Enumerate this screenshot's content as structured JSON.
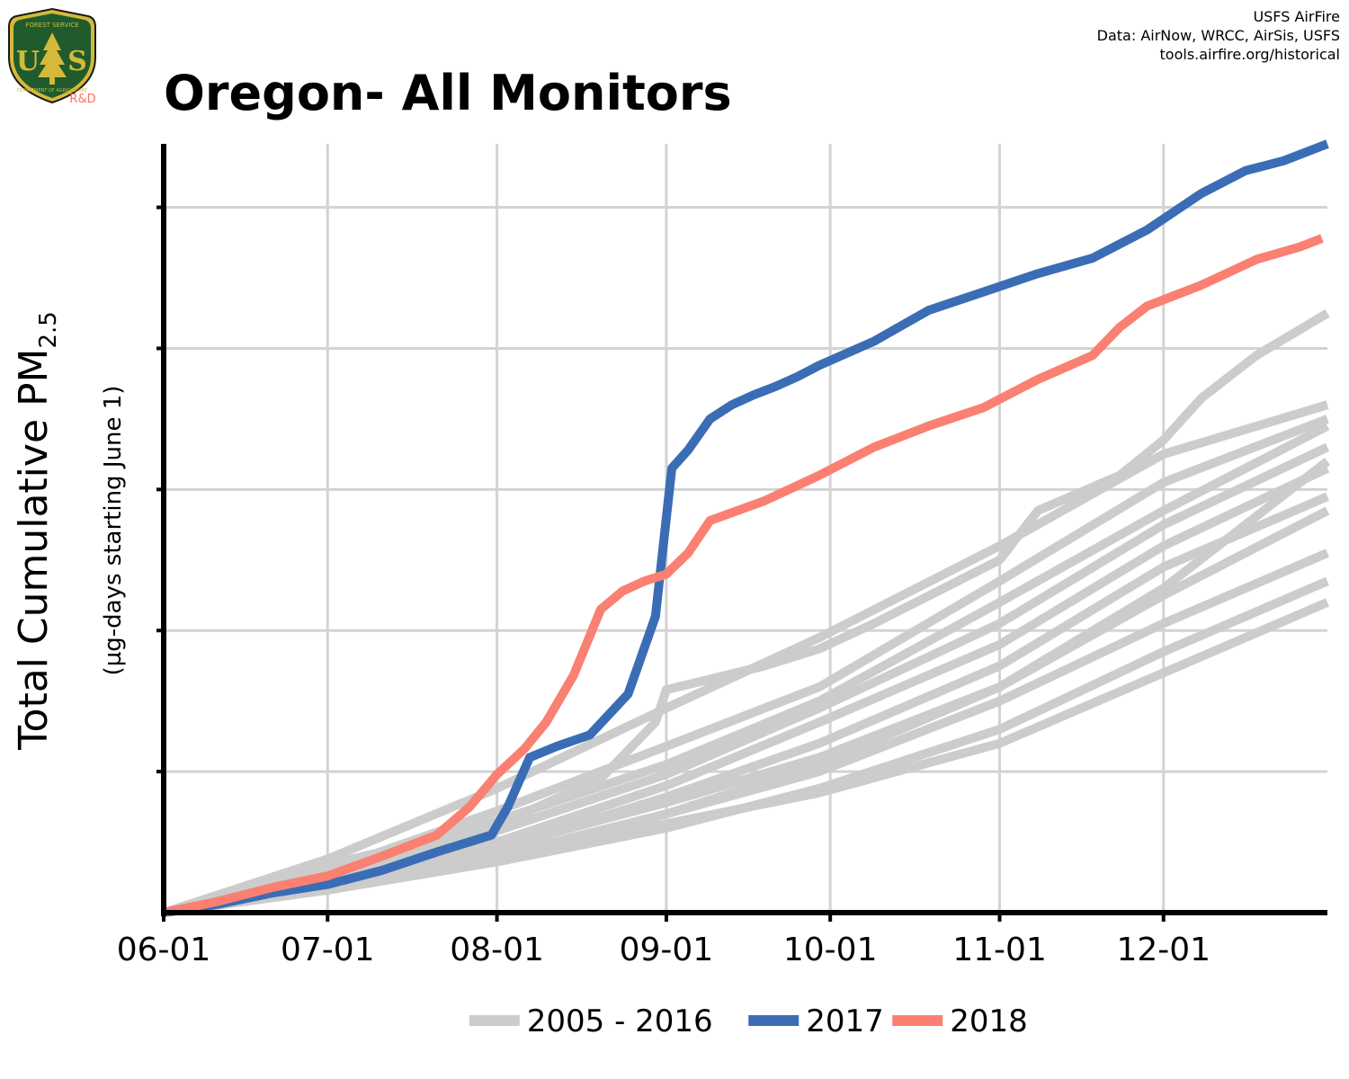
{
  "header": {
    "source_lines": [
      "USFS AirFire",
      "Data: AirNow, WRCC, AirSis, USFS",
      "tools.airfire.org/historical"
    ],
    "logo": {
      "top_text": "FOREST SERVICE",
      "letters": "U S",
      "bottom_text": "DEPARTMENT OF AGRICULTURE",
      "tag": "R&D",
      "colors": {
        "shield": "#1f5b2c",
        "trim": "#d4b93a",
        "tag": "#ff6f61"
      }
    }
  },
  "chart_data": {
    "type": "line",
    "title": "Oregon- All Monitors",
    "xlabel": "",
    "ylabel": "Total Cumulative PM",
    "ylabel_subscript": "2.5",
    "ylabel_sub": "(µg-days starting June 1)",
    "x_ticks": [
      "06-01",
      "07-01",
      "08-01",
      "09-01",
      "10-01",
      "11-01",
      "12-01"
    ],
    "x_tick_days": [
      0,
      30,
      61,
      92,
      122,
      153,
      183
    ],
    "xlim": [
      0,
      213
    ],
    "ylim": [
      0,
      5.45
    ],
    "y_ticks": [
      1,
      2,
      3,
      4,
      5
    ],
    "y_tick_labels_visible": false,
    "grid": true,
    "legend_position": "bottom",
    "legend": [
      {
        "label": "2005 - 2016",
        "color": "#cccccc"
      },
      {
        "label": "2017",
        "color": "#3a6db5"
      },
      {
        "label": "2018",
        "color": "#fa8072"
      }
    ],
    "series": [
      {
        "name": "2017",
        "color": "#3a6db5",
        "x": [
          0,
          10,
          20,
          30,
          40,
          50,
          60,
          63,
          67,
          72,
          78,
          85,
          90,
          93,
          96,
          100,
          104,
          108,
          112,
          116,
          120,
          130,
          140,
          150,
          160,
          170,
          180,
          190,
          198,
          205,
          213
        ],
        "y": [
          0,
          0.06,
          0.14,
          0.2,
          0.3,
          0.43,
          0.55,
          0.75,
          1.1,
          1.18,
          1.26,
          1.55,
          2.1,
          3.15,
          3.28,
          3.5,
          3.6,
          3.67,
          3.73,
          3.8,
          3.88,
          4.05,
          4.27,
          4.4,
          4.53,
          4.64,
          4.84,
          5.1,
          5.26,
          5.33,
          5.45
        ]
      },
      {
        "name": "2018",
        "color": "#fa8072",
        "x": [
          0,
          10,
          20,
          30,
          40,
          50,
          56,
          61,
          66,
          70,
          75,
          80,
          84,
          88,
          92,
          96,
          100,
          110,
          120,
          130,
          140,
          150,
          160,
          170,
          175,
          180,
          190,
          200,
          208,
          212
        ],
        "y": [
          0,
          0.08,
          0.18,
          0.26,
          0.4,
          0.55,
          0.75,
          0.98,
          1.16,
          1.35,
          1.68,
          2.15,
          2.28,
          2.35,
          2.4,
          2.55,
          2.78,
          2.92,
          3.1,
          3.3,
          3.45,
          3.58,
          3.78,
          3.95,
          4.15,
          4.3,
          4.45,
          4.63,
          4.72,
          4.78
        ]
      },
      {
        "name": "",
        "color": "#cccccc",
        "x": [
          0,
          30,
          61,
          80,
          90,
          92,
          110,
          120,
          130,
          153,
          160,
          175,
          183,
          190,
          200,
          213
        ],
        "y": [
          0,
          0.34,
          0.62,
          0.95,
          1.35,
          1.58,
          1.75,
          1.87,
          2.05,
          2.5,
          2.85,
          3.1,
          3.35,
          3.65,
          3.95,
          4.25
        ]
      },
      {
        "name": "",
        "color": "#cccccc",
        "x": [
          0,
          30,
          61,
          92,
          120,
          153,
          183,
          213
        ],
        "y": [
          0,
          0.38,
          0.88,
          1.45,
          1.95,
          2.6,
          3.25,
          3.6
        ]
      },
      {
        "name": "",
        "color": "#cccccc",
        "x": [
          0,
          30,
          61,
          92,
          120,
          153,
          183,
          213
        ],
        "y": [
          0,
          0.3,
          0.72,
          1.18,
          1.6,
          2.35,
          3.05,
          3.5
        ]
      },
      {
        "name": "",
        "color": "#cccccc",
        "x": [
          0,
          30,
          61,
          92,
          120,
          153,
          183,
          213
        ],
        "y": [
          0,
          0.28,
          0.65,
          1.05,
          1.5,
          2.2,
          2.85,
          3.45
        ]
      },
      {
        "name": "",
        "color": "#cccccc",
        "x": [
          0,
          30,
          61,
          92,
          120,
          153,
          183,
          213
        ],
        "y": [
          0,
          0.25,
          0.58,
          0.98,
          1.45,
          2.05,
          2.75,
          3.3
        ]
      },
      {
        "name": "",
        "color": "#cccccc",
        "x": [
          0,
          30,
          61,
          92,
          120,
          153,
          183,
          213
        ],
        "y": [
          0,
          0.22,
          0.5,
          0.9,
          1.35,
          1.9,
          2.6,
          3.15
        ]
      },
      {
        "name": "",
        "color": "#cccccc",
        "x": [
          0,
          30,
          61,
          92,
          120,
          153,
          183,
          213
        ],
        "y": [
          0,
          0.2,
          0.45,
          0.82,
          1.2,
          1.75,
          2.45,
          2.95
        ]
      },
      {
        "name": "",
        "color": "#cccccc",
        "x": [
          0,
          30,
          61,
          92,
          120,
          153,
          183,
          213
        ],
        "y": [
          0,
          0.21,
          0.46,
          0.78,
          1.1,
          1.6,
          2.25,
          2.85
        ]
      },
      {
        "name": "",
        "color": "#cccccc",
        "x": [
          0,
          30,
          61,
          92,
          120,
          153,
          183,
          213
        ],
        "y": [
          0,
          0.18,
          0.4,
          0.7,
          1.0,
          1.5,
          2.05,
          2.55
        ]
      },
      {
        "name": "",
        "color": "#cccccc",
        "x": [
          0,
          30,
          61,
          92,
          120,
          153,
          183,
          213
        ],
        "y": [
          0,
          0.16,
          0.36,
          0.6,
          0.88,
          1.3,
          1.85,
          2.35
        ]
      },
      {
        "name": "",
        "color": "#cccccc",
        "x": [
          0,
          30,
          61,
          92,
          120,
          153,
          183,
          213
        ],
        "y": [
          0,
          0.18,
          0.4,
          0.63,
          0.85,
          1.2,
          1.7,
          2.2
        ]
      },
      {
        "name": "",
        "color": "#cccccc",
        "x": [
          0,
          30,
          61,
          92,
          120,
          153,
          183,
          213
        ],
        "y": [
          0,
          0.17,
          0.38,
          0.7,
          1.05,
          1.6,
          2.3,
          3.2
        ]
      }
    ]
  }
}
